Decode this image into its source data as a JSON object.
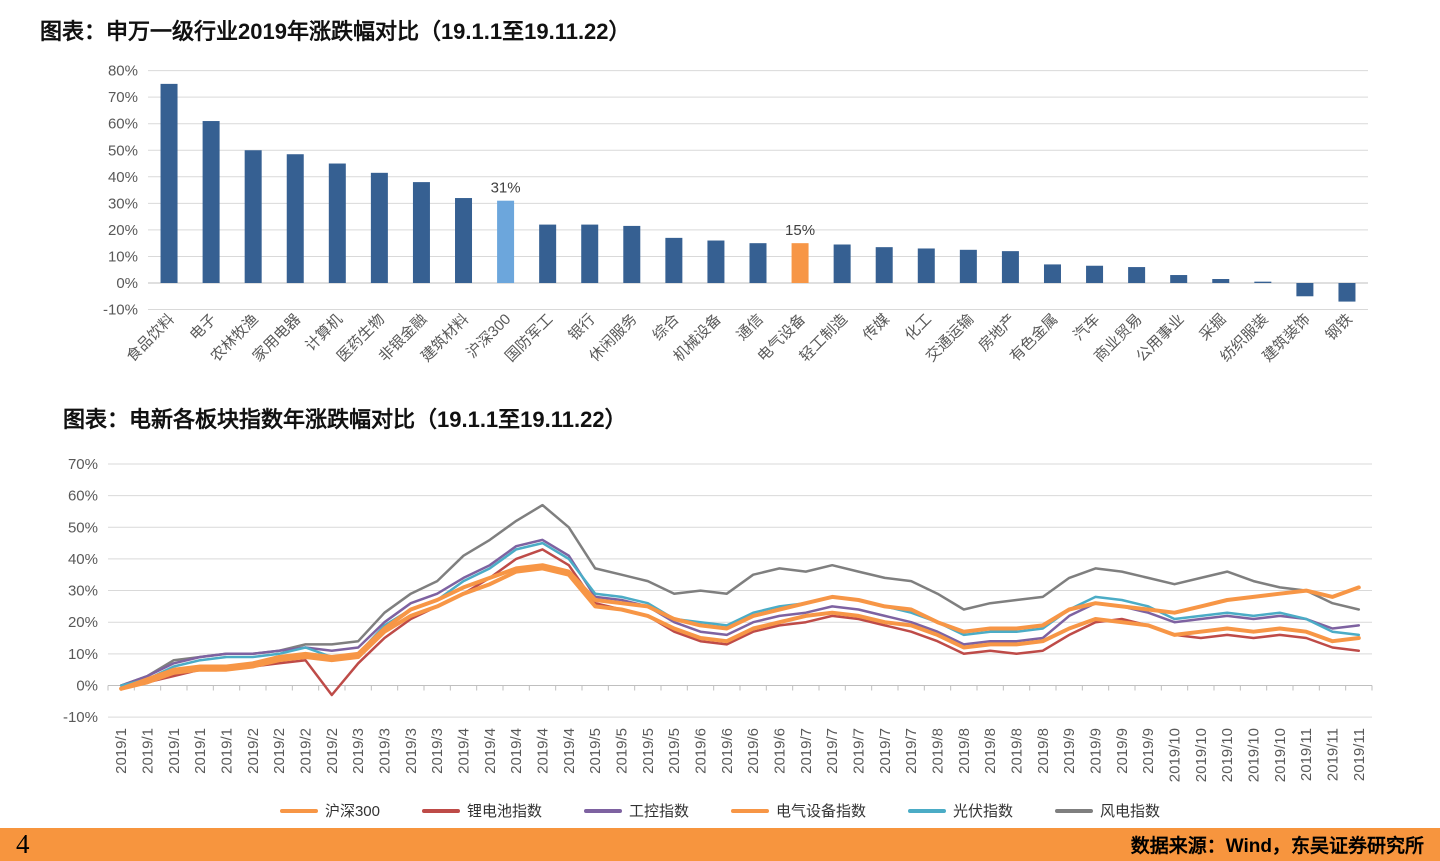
{
  "page": {
    "number": "4",
    "source": "数据来源：Wind，东吴证券研究所"
  },
  "colors": {
    "bar_default": "#366092",
    "bar_highlight_blue": "#6CA6DC",
    "bar_highlight_orange": "#F79646",
    "grid": "#D9D9D9",
    "axis": "#BFBFBF",
    "footer": "#F7953E"
  },
  "chart_data": [
    {
      "type": "bar",
      "title": "图表：申万一级行业2019年涨跌幅对比（19.1.1至19.11.22）",
      "categories": [
        "食品饮料",
        "电子",
        "农林牧渔",
        "家用电器",
        "计算机",
        "医药生物",
        "非银金融",
        "建筑材料",
        "沪深300",
        "国防军工",
        "银行",
        "休闲服务",
        "综合",
        "机械设备",
        "通信",
        "电气设备",
        "轻工制造",
        "传媒",
        "化工",
        "交通运输",
        "房地产",
        "有色金属",
        "汽车",
        "商业贸易",
        "公用事业",
        "采掘",
        "纺织服装",
        "建筑装饰",
        "钢铁"
      ],
      "values": [
        75,
        61,
        50,
        48.5,
        45,
        41.5,
        38,
        32,
        31,
        22,
        22,
        21.5,
        17,
        16,
        15,
        15,
        14.5,
        13.5,
        13,
        12.5,
        12,
        7,
        6.5,
        6,
        3,
        1.5,
        0.5,
        -5,
        -7
      ],
      "ylim": [
        -10,
        80
      ],
      "ytick_step": 10,
      "ytick_suffix": "%",
      "grid": true,
      "bar_color": "#366092",
      "highlights": [
        {
          "index": 8,
          "color": "#6CA6DC",
          "label": "31%"
        },
        {
          "index": 15,
          "color": "#F79646",
          "label": "15%"
        }
      ]
    },
    {
      "type": "line",
      "title": "图表：电新各板块指数年涨跌幅对比（19.1.1至19.11.22）",
      "x": [
        "2019/1",
        "2019/1",
        "2019/1",
        "2019/1",
        "2019/1",
        "2019/2",
        "2019/2",
        "2019/2",
        "2019/2",
        "2019/3",
        "2019/3",
        "2019/3",
        "2019/3",
        "2019/4",
        "2019/4",
        "2019/4",
        "2019/4",
        "2019/4",
        "2019/5",
        "2019/5",
        "2019/5",
        "2019/5",
        "2019/6",
        "2019/6",
        "2019/6",
        "2019/6",
        "2019/7",
        "2019/7",
        "2019/7",
        "2019/7",
        "2019/7",
        "2019/8",
        "2019/8",
        "2019/8",
        "2019/8",
        "2019/8",
        "2019/9",
        "2019/9",
        "2019/9",
        "2019/9",
        "2019/10",
        "2019/10",
        "2019/10",
        "2019/10",
        "2019/10",
        "2019/11",
        "2019/11",
        "2019/11"
      ],
      "ylim": [
        -10,
        70
      ],
      "ytick_step": 10,
      "ytick_suffix": "%",
      "grid": true,
      "legend_position": "bottom",
      "series": [
        {
          "name": "沪深300",
          "color": "#F79646",
          "width": 4,
          "values": [
            -1,
            2,
            5,
            6,
            6,
            7,
            9,
            10,
            9,
            10,
            18,
            24,
            27,
            31,
            34,
            37,
            38,
            36,
            27,
            26,
            25,
            21,
            19,
            18,
            22,
            24,
            26,
            28,
            27,
            25,
            24,
            20,
            17,
            18,
            18,
            19,
            24,
            26,
            25,
            24,
            23,
            25,
            27,
            28,
            29,
            30,
            28,
            31
          ]
        },
        {
          "name": "锂电池指数",
          "color": "#BE4B48",
          "width": 2.5,
          "values": [
            0,
            1,
            3,
            5,
            6,
            6,
            7,
            8,
            -3,
            7,
            15,
            21,
            25,
            29,
            34,
            40,
            43,
            38,
            26,
            24,
            22,
            17,
            14,
            13,
            17,
            19,
            20,
            22,
            21,
            19,
            17,
            14,
            10,
            11,
            10,
            11,
            16,
            20,
            21,
            19,
            16,
            15,
            16,
            15,
            16,
            15,
            12,
            11
          ]
        },
        {
          "name": "工控指数",
          "color": "#7E62A1",
          "width": 2.5,
          "values": [
            0,
            3,
            7,
            9,
            10,
            10,
            11,
            12,
            11,
            12,
            20,
            26,
            29,
            34,
            38,
            44,
            46,
            41,
            28,
            27,
            25,
            20,
            17,
            16,
            20,
            22,
            23,
            25,
            24,
            22,
            20,
            17,
            13,
            14,
            14,
            15,
            22,
            26,
            25,
            23,
            20,
            21,
            22,
            21,
            22,
            21,
            18,
            19
          ]
        },
        {
          "name": "电气设备指数",
          "color": "#F79646",
          "width": 4,
          "values": [
            -1,
            1,
            4,
            5,
            5,
            6,
            8,
            9,
            8,
            9,
            17,
            22,
            25,
            29,
            32,
            36,
            37,
            35,
            25,
            24,
            22,
            18,
            15,
            14,
            18,
            20,
            22,
            23,
            22,
            20,
            19,
            16,
            12,
            13,
            13,
            14,
            18,
            21,
            20,
            19,
            16,
            17,
            18,
            17,
            18,
            17,
            14,
            15
          ]
        },
        {
          "name": "光伏指数",
          "color": "#4BACC6",
          "width": 2.5,
          "values": [
            0,
            2,
            6,
            8,
            9,
            9,
            10,
            12,
            9,
            10,
            19,
            24,
            27,
            33,
            37,
            43,
            45,
            40,
            29,
            28,
            26,
            21,
            20,
            19,
            23,
            25,
            26,
            28,
            27,
            25,
            23,
            20,
            16,
            17,
            17,
            18,
            24,
            28,
            27,
            25,
            21,
            22,
            23,
            22,
            23,
            21,
            17,
            16
          ]
        },
        {
          "name": "风电指数",
          "color": "#7F7F7F",
          "width": 2.5,
          "values": [
            0,
            3,
            8,
            9,
            10,
            10,
            11,
            13,
            13,
            14,
            23,
            29,
            33,
            41,
            46,
            52,
            57,
            50,
            37,
            35,
            33,
            29,
            30,
            29,
            35,
            37,
            36,
            38,
            36,
            34,
            33,
            29,
            24,
            26,
            27,
            28,
            34,
            37,
            36,
            34,
            32,
            34,
            36,
            33,
            31,
            30,
            26,
            24
          ]
        }
      ]
    }
  ]
}
